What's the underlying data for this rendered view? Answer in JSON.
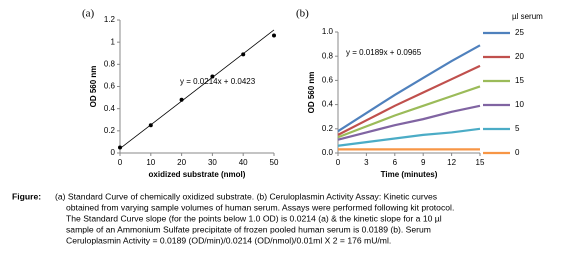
{
  "chart_data": [
    {
      "type": "scatter",
      "panel_label": "(a)",
      "x_label": "oxidized substrate (nmol)",
      "y_label": "OD 560 nm",
      "annotation": "y = 0.0214x + 0.0423",
      "x": [
        0,
        10,
        20,
        30,
        40,
        50
      ],
      "values": [
        0.05,
        0.25,
        0.48,
        0.69,
        0.89,
        1.06
      ],
      "color": "#000000",
      "trendline": {
        "x": [
          0,
          50
        ],
        "y": [
          0.04,
          1.11
        ],
        "color": "#000000"
      },
      "xlim": [
        0,
        50
      ],
      "xticks": [
        0,
        10,
        20,
        30,
        40,
        50
      ],
      "ylim": [
        0,
        1.2
      ],
      "yticks": [
        0,
        0.2,
        0.4,
        0.6,
        0.8,
        1,
        1.2
      ],
      "grid": false
    },
    {
      "type": "line",
      "panel_label": "(b)",
      "x_label": "Time (minutes)",
      "y_label": "OD 560 nm",
      "annotation": "y = 0.0189x + 0.0965",
      "legend_title": "µl serum",
      "legend": "right",
      "x": [
        0,
        3,
        6,
        9,
        12,
        15
      ],
      "series": [
        {
          "name": "25",
          "color": "#4f81bd",
          "values": [
            0.18,
            0.33,
            0.48,
            0.62,
            0.76,
            0.89
          ]
        },
        {
          "name": "20",
          "color": "#c0504d",
          "values": [
            0.15,
            0.27,
            0.39,
            0.5,
            0.61,
            0.72
          ]
        },
        {
          "name": "15",
          "color": "#9bbb59",
          "values": [
            0.13,
            0.22,
            0.31,
            0.39,
            0.47,
            0.55
          ]
        },
        {
          "name": "10",
          "color": "#8064a2",
          "values": [
            0.11,
            0.17,
            0.23,
            0.28,
            0.34,
            0.39
          ]
        },
        {
          "name": "5",
          "color": "#4bacc6",
          "values": [
            0.06,
            0.09,
            0.12,
            0.15,
            0.17,
            0.2
          ]
        },
        {
          "name": "0",
          "color": "#f79646",
          "values": [
            0.03,
            0.03,
            0.03,
            0.03,
            0.03,
            0.03
          ]
        }
      ],
      "xlim": [
        0,
        15
      ],
      "xticks": [
        0,
        3,
        6,
        9,
        12,
        15
      ],
      "ylim": [
        0,
        1
      ],
      "yticks": [
        {
          "value": 0,
          "label": "0.0"
        },
        0.2,
        0.4,
        0.6,
        0.8,
        {
          "value": 1,
          "label": "1.0"
        }
      ],
      "grid": false
    }
  ],
  "caption": {
    "label": "Figure:",
    "lines": [
      "(a) Standard Curve of chemically oxidized substrate. (b) Ceruloplasmin Activity Assay: Kinetic curves",
      "obtained from varying   sample volumes of human serum. Assays were performed following kit protocol.",
      "The Standard Curve slope (for the points below 1.0 OD) is 0.0214 (a) & the kinetic slope for a 10 µl",
      "sample of an Ammonium Sulfate precipitate of frozen pooled human serum is 0.0189 (b). Serum",
      "Ceruloplasmin Activity = 0.0189 (OD/min)/0.0214 (OD/nmol)/0.01ml X 2 = 176 mU/ml."
    ]
  }
}
